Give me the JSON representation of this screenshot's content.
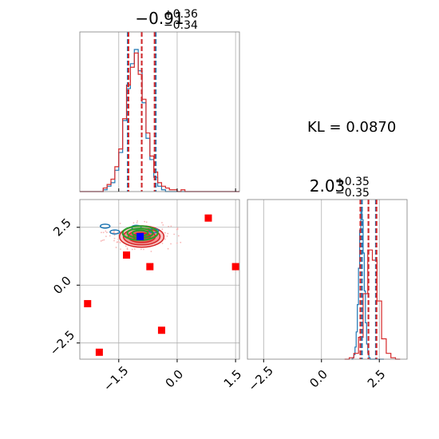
{
  "colors": {
    "blue": "#1f77b4",
    "red": "#d62728",
    "green": "#2ca02c",
    "grid": "#b0b0b0",
    "marker_red": "#ff0000",
    "marker_blue": "#0000ff"
  },
  "kl_label": "KL = 0.0870",
  "chart_data": [
    {
      "type": "histogram",
      "panel": "marginal-x",
      "title": {
        "main": "−0.91",
        "sup": "+0.36",
        "sub": "−0.34"
      },
      "xlim": [
        -2.5,
        1.6
      ],
      "grid": true,
      "blue_quantiles": [
        -1.27,
        -0.91,
        -0.55
      ],
      "red_quantiles": [
        -1.25,
        -0.91,
        -0.58
      ],
      "series": [
        {
          "color": "blue",
          "bin_start": -2.5,
          "bin_width": 0.1,
          "counts": [
            0,
            0,
            0,
            0,
            0,
            0,
            1,
            3,
            5,
            12,
            22,
            40,
            58,
            72,
            80,
            68,
            50,
            30,
            18,
            8,
            3,
            1,
            0,
            0,
            0,
            0,
            0,
            0,
            0,
            0,
            0,
            0,
            0,
            0,
            0,
            0,
            0,
            0,
            0,
            0,
            0
          ]
        },
        {
          "color": "red",
          "bin_start": -2.5,
          "bin_width": 0.1,
          "counts": [
            0,
            0,
            0,
            0,
            0,
            0,
            2,
            4,
            7,
            14,
            24,
            41,
            60,
            70,
            78,
            66,
            52,
            33,
            20,
            11,
            5,
            3,
            2,
            1,
            1,
            0,
            1,
            0,
            0,
            0,
            0,
            0,
            0,
            0,
            0,
            0,
            0,
            0,
            0,
            0,
            0
          ]
        }
      ]
    },
    {
      "type": "scatter",
      "panel": "joint",
      "xlim": [
        -2.5,
        1.6
      ],
      "ylim": [
        -3.2,
        3.7
      ],
      "x_ticks": [
        -1.5,
        0.0,
        1.5
      ],
      "x_tick_labels": [
        "−1.5",
        "0.0",
        "1.5"
      ],
      "y_ticks": [
        -2.5,
        0.0,
        2.5
      ],
      "y_tick_labels": [
        "−2.5",
        "0.0",
        "2.5"
      ],
      "grid": true,
      "red_contour_center": [
        -0.91,
        2.1
      ],
      "red_contour_radii": [
        [
          0.57,
          0.46
        ],
        [
          0.47,
          0.36
        ],
        [
          0.35,
          0.26
        ],
        [
          0.22,
          0.16
        ]
      ],
      "green_contour_center": [
        -0.95,
        2.25
      ],
      "green_contour_radii": [
        [
          0.45,
          0.3
        ],
        [
          0.33,
          0.2
        ],
        [
          0.2,
          0.12
        ]
      ],
      "red_markers": [
        [
          0.8,
          2.9
        ],
        [
          1.5,
          0.8
        ],
        [
          -1.3,
          1.3
        ],
        [
          -0.7,
          0.8
        ],
        [
          -2.3,
          -0.8
        ],
        [
          -0.4,
          -1.95
        ],
        [
          -2.0,
          -2.9
        ]
      ],
      "blue_marker": [
        -0.95,
        2.1
      ]
    },
    {
      "type": "histogram",
      "panel": "marginal-y",
      "title": {
        "main": "2.03",
        "sup": "+0.35",
        "sub": "−0.35"
      },
      "xlim": [
        -3.2,
        3.7
      ],
      "x_ticks": [
        -2.5,
        0.0,
        2.5
      ],
      "x_tick_labels": [
        "−2.5",
        "0.0",
        "2.5"
      ],
      "grid": true,
      "blue_quantiles": [
        1.75,
        2.03,
        2.35
      ],
      "red_quantiles": [
        1.68,
        2.03,
        2.38
      ],
      "series": [
        {
          "color": "blue",
          "bin_start": 1.3,
          "bin_width": 0.05,
          "counts": [
            0,
            1,
            3,
            8,
            18,
            36,
            60,
            85,
            100,
            92,
            70,
            45,
            24,
            10,
            4,
            1,
            0,
            0,
            0,
            0,
            0,
            0,
            0,
            0,
            0,
            0,
            0,
            0
          ]
        },
        {
          "color": "red",
          "bin_start": 1.0,
          "bin_width": 0.2,
          "counts": [
            0,
            1,
            4,
            15,
            45,
            75,
            68,
            40,
            14,
            4,
            1,
            0
          ]
        }
      ]
    }
  ]
}
